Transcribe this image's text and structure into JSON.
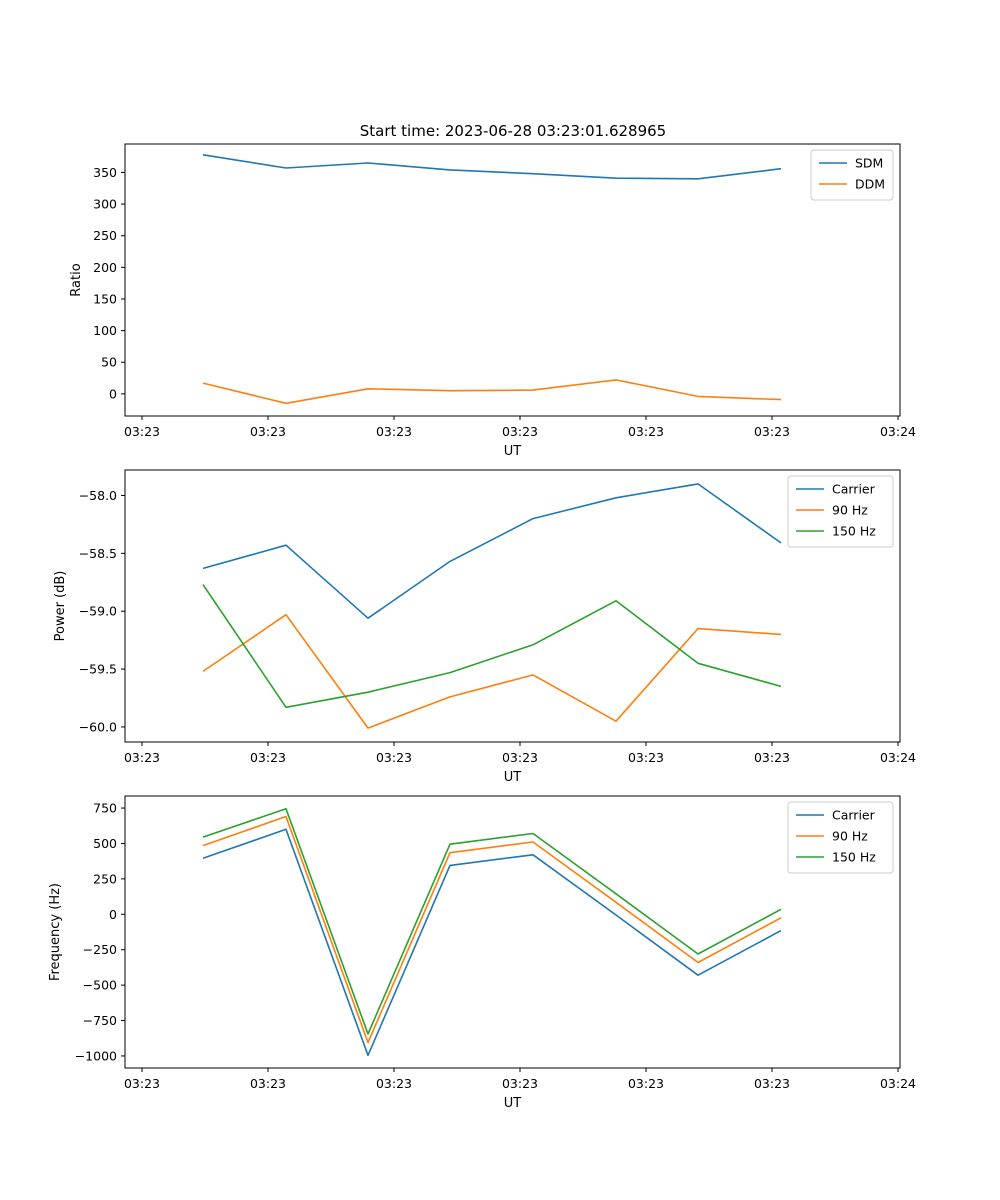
{
  "title": "Start time: 2023-06-28 03:23:01.628965",
  "colors": {
    "C0": "#1f77b4",
    "C1": "#ff7f0e",
    "C2": "#2ca02c"
  },
  "chart_data": [
    {
      "type": "line",
      "ylabel": "Ratio",
      "xlabel": "UT",
      "xticks": [
        "03:23",
        "03:23",
        "03:23",
        "03:23",
        "03:23",
        "03:23",
        "03:24"
      ],
      "yticks": [
        0,
        50,
        100,
        150,
        200,
        250,
        300,
        350
      ],
      "ylim": [
        -35,
        395
      ],
      "legend": "top-right",
      "series": [
        {
          "name": "SDM",
          "color": "#1f77b4",
          "values": [
            378,
            357,
            365,
            354,
            348,
            341,
            340,
            356
          ]
        },
        {
          "name": "DDM",
          "color": "#ff7f0e",
          "values": [
            17,
            -15,
            8,
            5,
            6,
            22,
            -4,
            -9
          ]
        }
      ]
    },
    {
      "type": "line",
      "ylabel": "Power (dB)",
      "xlabel": "UT",
      "xticks": [
        "03:23",
        "03:23",
        "03:23",
        "03:23",
        "03:23",
        "03:23",
        "03:24"
      ],
      "yticks": [
        -60.0,
        -59.5,
        -59.0,
        -58.5,
        -58.0
      ],
      "ylim": [
        -60.13,
        -57.78
      ],
      "legend": "top-right",
      "series": [
        {
          "name": "Carrier",
          "color": "#1f77b4",
          "values": [
            -58.63,
            -58.43,
            -59.06,
            -58.57,
            -58.2,
            -58.02,
            -57.9,
            -58.41
          ]
        },
        {
          "name": "90 Hz",
          "color": "#ff7f0e",
          "values": [
            -59.52,
            -59.03,
            -60.01,
            -59.74,
            -59.55,
            -59.95,
            -59.15,
            -59.2
          ]
        },
        {
          "name": "150 Hz",
          "color": "#2ca02c",
          "values": [
            -58.77,
            -59.83,
            -59.7,
            -59.53,
            -59.29,
            -58.91,
            -59.45,
            -59.65
          ]
        }
      ]
    },
    {
      "type": "line",
      "ylabel": "Frequency (Hz)",
      "xlabel": "UT",
      "xticks": [
        "03:23",
        "03:23",
        "03:23",
        "03:23",
        "03:23",
        "03:23",
        "03:24"
      ],
      "yticks": [
        -1000,
        -750,
        -500,
        -250,
        0,
        250,
        500,
        750
      ],
      "ylim": [
        -1085,
        835
      ],
      "legend": "top-right",
      "series": [
        {
          "name": "Carrier",
          "color": "#1f77b4",
          "values": [
            395,
            600,
            -995,
            345,
            420,
            -5,
            -430,
            -115
          ]
        },
        {
          "name": "90 Hz",
          "color": "#ff7f0e",
          "values": [
            485,
            690,
            -905,
            435,
            510,
            85,
            -340,
            -25
          ]
        },
        {
          "name": "150 Hz",
          "color": "#2ca02c",
          "values": [
            545,
            745,
            -845,
            495,
            570,
            145,
            -280,
            35
          ]
        }
      ]
    }
  ]
}
